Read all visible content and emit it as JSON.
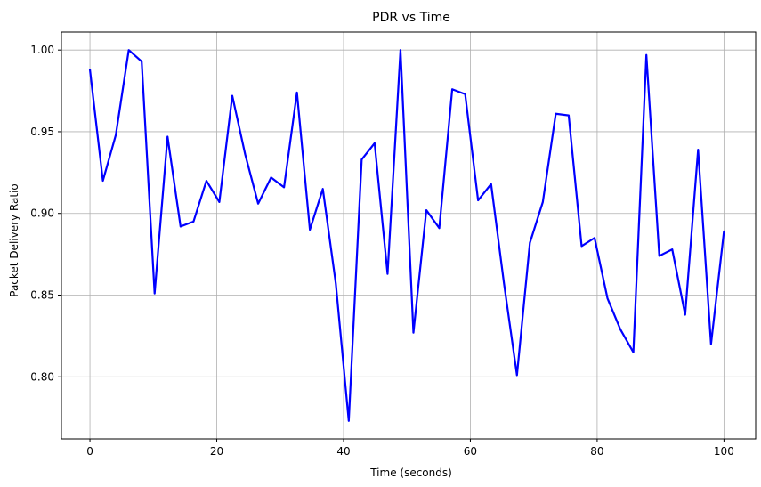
{
  "chart_data": {
    "type": "line",
    "title": "PDR vs Time",
    "xlabel": "Time (seconds)",
    "ylabel": "Packet Delivery Ratio",
    "xlim": [
      -4.5,
      105
    ],
    "ylim": [
      0.762,
      1.011
    ],
    "xticks": [
      0,
      20,
      40,
      60,
      80,
      100
    ],
    "xtick_labels": [
      "0",
      "20",
      "40",
      "60",
      "80",
      "100"
    ],
    "yticks": [
      0.8,
      0.85,
      0.9,
      0.95,
      1.0
    ],
    "ytick_labels": [
      "0.80",
      "0.85",
      "0.90",
      "0.95",
      "1.00"
    ],
    "grid": true,
    "colors": {
      "line": "#0000ff",
      "grid": "#b0b0b0",
      "axes": "#000000",
      "background": "#ffffff"
    },
    "series": [
      {
        "x": [
          0,
          2.04,
          4.08,
          6.12,
          8.16,
          10.2,
          12.24,
          14.29,
          16.33,
          18.37,
          20.41,
          22.45,
          24.49,
          26.53,
          28.57,
          30.61,
          32.65,
          34.69,
          36.73,
          38.78,
          40.82,
          42.86,
          44.9,
          46.94,
          48.98,
          51.02,
          53.06,
          55.1,
          57.14,
          59.18,
          61.22,
          63.27,
          65.31,
          67.35,
          69.39,
          71.43,
          73.47,
          75.51,
          77.55,
          79.59,
          81.63,
          83.67,
          85.71,
          87.76,
          89.8,
          91.84,
          93.88,
          95.92,
          97.96,
          100
        ],
        "y": [
          0.988,
          0.92,
          0.948,
          1.0,
          0.993,
          0.851,
          0.947,
          0.892,
          0.895,
          0.92,
          0.907,
          0.972,
          0.936,
          0.906,
          0.922,
          0.916,
          0.974,
          0.89,
          0.915,
          0.857,
          0.773,
          0.933,
          0.943,
          0.863,
          1.0,
          0.827,
          0.902,
          0.891,
          0.976,
          0.973,
          0.908,
          0.918,
          0.857,
          0.801,
          0.882,
          0.907,
          0.961,
          0.96,
          0.88,
          0.885,
          0.848,
          0.829,
          0.815,
          0.997,
          0.874,
          0.878,
          0.838,
          0.939,
          0.82,
          0.889
        ]
      }
    ]
  }
}
